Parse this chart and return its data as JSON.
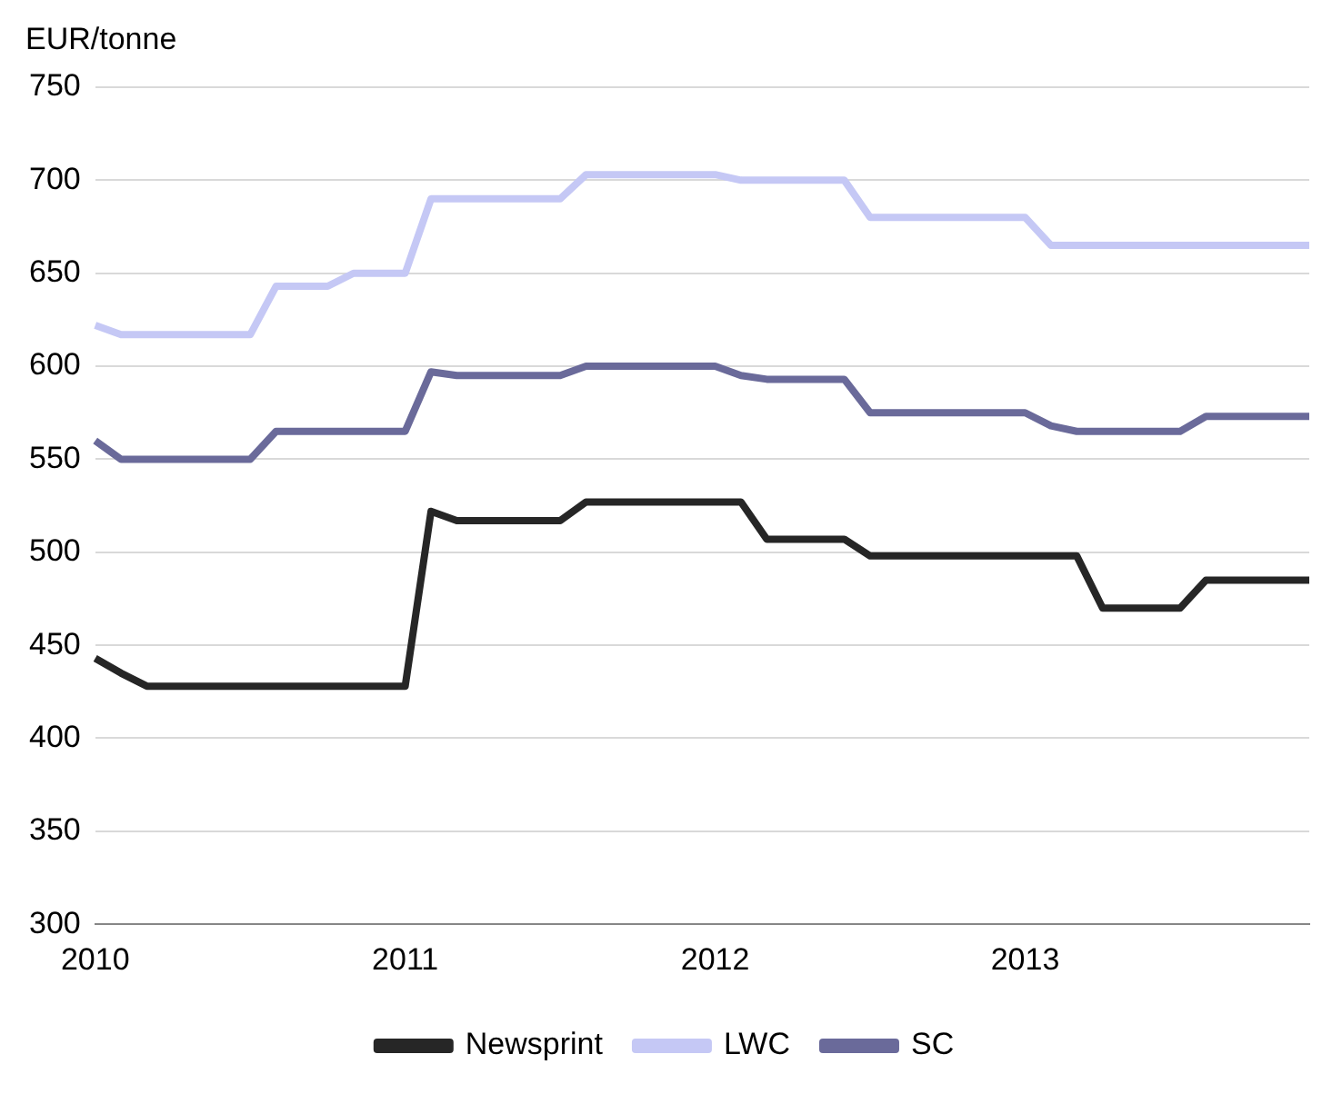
{
  "chart_data": {
    "type": "line",
    "ylabel": "EUR/tonne",
    "categories": [
      "2010",
      null,
      null,
      null,
      null,
      null,
      null,
      null,
      null,
      null,
      null,
      null,
      "2011",
      null,
      null,
      null,
      null,
      null,
      null,
      null,
      null,
      null,
      null,
      null,
      "2012",
      null,
      null,
      null,
      null,
      null,
      null,
      null,
      null,
      null,
      null,
      null,
      "2013",
      null,
      null,
      null,
      null,
      null,
      null,
      null,
      null,
      null,
      null,
      null
    ],
    "series": [
      {
        "name": "Newsprint",
        "color": "#262626",
        "values": [
          443,
          435,
          428,
          428,
          428,
          428,
          428,
          428,
          428,
          428,
          428,
          428,
          428,
          522,
          517,
          517,
          517,
          517,
          517,
          527,
          527,
          527,
          527,
          527,
          527,
          527,
          507,
          507,
          507,
          507,
          498,
          498,
          498,
          498,
          498,
          498,
          498,
          498,
          498,
          470,
          470,
          470,
          470,
          485,
          485,
          485,
          485,
          485
        ]
      },
      {
        "name": "LWC",
        "color": "#c5c8f5",
        "values": [
          622,
          617,
          617,
          617,
          617,
          617,
          617,
          643,
          643,
          643,
          650,
          650,
          650,
          690,
          690,
          690,
          690,
          690,
          690,
          703,
          703,
          703,
          703,
          703,
          703,
          700,
          700,
          700,
          700,
          700,
          680,
          680,
          680,
          680,
          680,
          680,
          680,
          665,
          665,
          665,
          665,
          665,
          665,
          665,
          665,
          665,
          665,
          665
        ]
      },
      {
        "name": "SC",
        "color": "#6a6a9a",
        "values": [
          560,
          550,
          550,
          550,
          550,
          550,
          550,
          565,
          565,
          565,
          565,
          565,
          565,
          597,
          595,
          595,
          595,
          595,
          595,
          600,
          600,
          600,
          600,
          600,
          600,
          595,
          593,
          593,
          593,
          593,
          575,
          575,
          575,
          575,
          575,
          575,
          575,
          568,
          565,
          565,
          565,
          565,
          565,
          573,
          573,
          573,
          573,
          573
        ]
      }
    ],
    "ylim": [
      300,
      750
    ],
    "yticks": [
      300,
      350,
      400,
      450,
      500,
      550,
      600,
      650,
      700,
      750
    ],
    "grid": "y",
    "legend": "bottom",
    "marker": "none",
    "line_style": "solid"
  }
}
